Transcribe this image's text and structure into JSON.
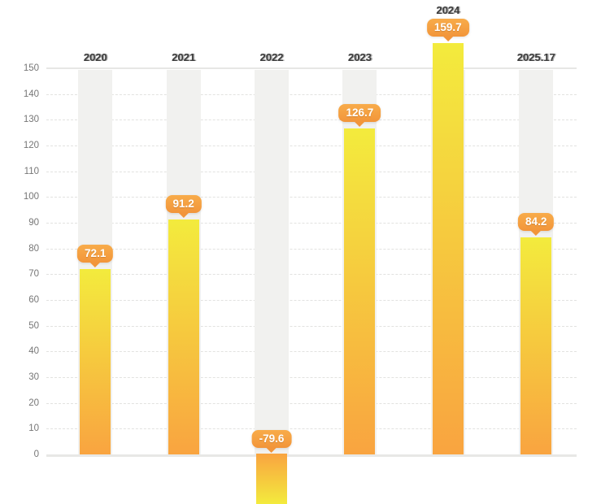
{
  "chart_data": {
    "type": "bar",
    "categories": [
      "2020",
      "2021",
      "2022",
      "2023",
      "2024",
      "2025.17"
    ],
    "values": [
      72.1,
      91.2,
      -79.6,
      126.7,
      159.7,
      84.2
    ],
    "value_labels": [
      "72.1",
      "91.2",
      "-79.6",
      "126.7",
      "159.7",
      "84.2"
    ],
    "y_ticks": [
      0,
      10,
      20,
      30,
      40,
      50,
      60,
      70,
      80,
      90,
      100,
      110,
      120,
      130,
      140,
      150
    ],
    "y_tick_labels": [
      "0",
      "10",
      "20",
      "30",
      "40",
      "50",
      "60",
      "70",
      "80",
      "90",
      "100",
      "110",
      "120",
      "130",
      "140",
      "150"
    ],
    "title": "",
    "xlabel": "",
    "ylabel": "",
    "ylim": [
      0,
      150
    ],
    "grid": true,
    "legend": false,
    "category_label_position": "top",
    "negative_bar_clipped_at_bottom": true,
    "colors": {
      "bar_value_end": "#f3eb3d",
      "bar_base_end": "#f9a440",
      "badge_top": "#f8ac4a",
      "badge_bottom": "#f2953a",
      "badge_text": "#ffffff",
      "band": "#f1f1ef",
      "gridline": "#e2e2e0",
      "axis_line": "#e8e8e6",
      "x_label": "#3c3c3c",
      "y_label": "#767676",
      "background": "#ffffff"
    }
  }
}
